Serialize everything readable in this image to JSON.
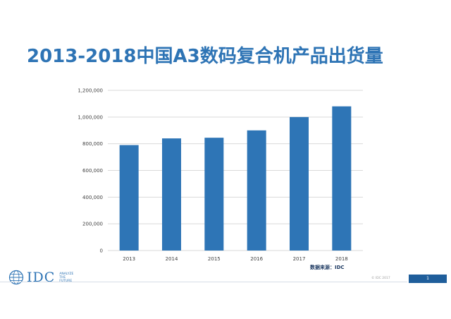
{
  "title": "2013-2018中国A3数码复合机产品出货量",
  "source": "数据来源：IDC",
  "logo": {
    "text": "IDC",
    "tagline": [
      "ANALYZE",
      "THE",
      "FUTURE"
    ]
  },
  "footer": {
    "copyright": "© IDC 2017",
    "page_number": "1"
  },
  "colors": {
    "title": "#2e74b5",
    "bar": "#2e75b6",
    "grid": "#d9d9d9",
    "page_box": "#1f5e9b"
  },
  "chart_data": {
    "type": "bar",
    "categories": [
      "2013",
      "2014",
      "2015",
      "2016",
      "2017",
      "2018"
    ],
    "values": [
      790000,
      840000,
      845000,
      900000,
      1000000,
      1080000
    ],
    "ylim": [
      0,
      1200000
    ],
    "yticks": [
      "0",
      "200,000",
      "400,000",
      "600,000",
      "800,000",
      "1,000,000",
      "1,200,000"
    ],
    "ytick_values": [
      0,
      200000,
      400000,
      600000,
      800000,
      1000000,
      1200000
    ],
    "grid": true,
    "legend": "none"
  }
}
